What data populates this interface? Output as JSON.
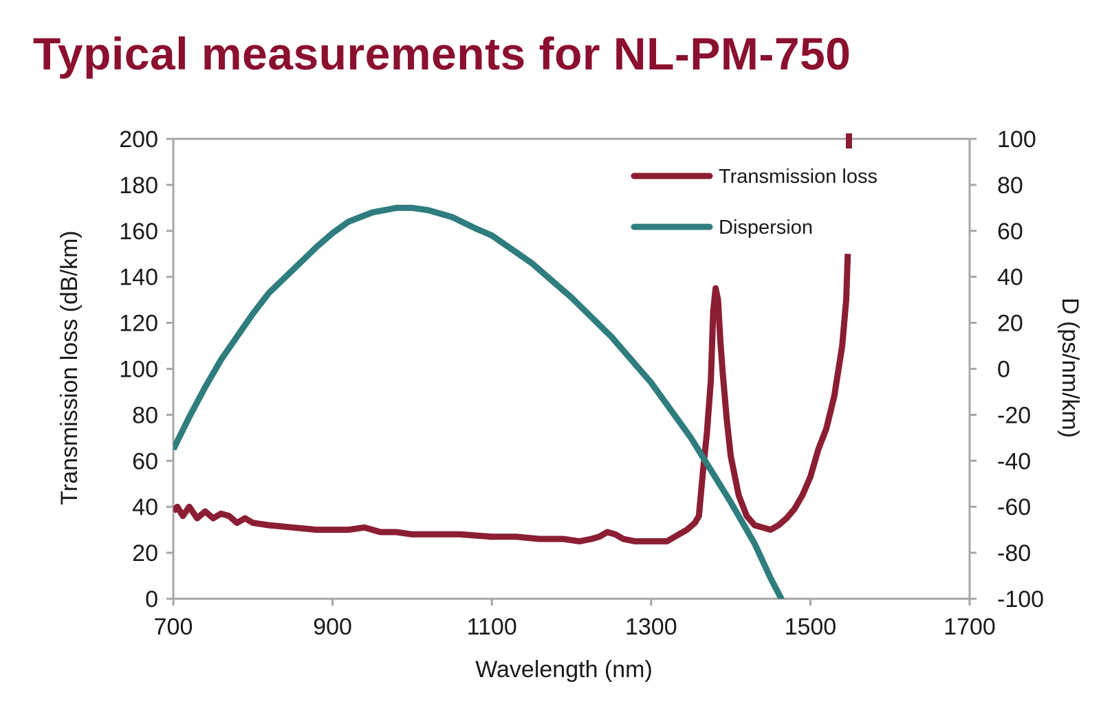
{
  "title": "Typical measurements for NL-PM-750",
  "chart_data": {
    "type": "line",
    "title": "Typical measurements for NL-PM-750",
    "xlabel": "Wavelength (nm)",
    "ylabel_left": "Transmission loss (dB/km)",
    "ylabel_right": "D (ps/nm/km)",
    "xlim": [
      700,
      1700
    ],
    "ylim_left": [
      0,
      200
    ],
    "ylim_right": [
      -100,
      100
    ],
    "x_ticks": [
      "700",
      "900",
      "1100",
      "1300",
      "1500",
      "1700"
    ],
    "y_left_ticks": [
      "0",
      "20",
      "40",
      "60",
      "80",
      "100",
      "120",
      "140",
      "160",
      "180",
      "200"
    ],
    "y_right_ticks": [
      "-100",
      "-80",
      "-60",
      "-40",
      "-20",
      "0",
      "20",
      "40",
      "60",
      "80",
      "100"
    ],
    "grid": false,
    "legend_position": "top-right",
    "series": [
      {
        "name": "Transmission loss",
        "axis": "left",
        "color": "#8b1e32",
        "x": [
          700,
          705,
          712,
          720,
          730,
          740,
          750,
          760,
          770,
          780,
          790,
          800,
          820,
          850,
          880,
          900,
          920,
          940,
          960,
          980,
          1000,
          1030,
          1060,
          1100,
          1130,
          1160,
          1190,
          1210,
          1225,
          1235,
          1245,
          1255,
          1265,
          1280,
          1300,
          1320,
          1335,
          1345,
          1355,
          1360,
          1365,
          1370,
          1375,
          1378,
          1381,
          1384,
          1387,
          1390,
          1395,
          1400,
          1410,
          1420,
          1430,
          1440,
          1450,
          1460,
          1470,
          1480,
          1490,
          1500,
          1510,
          1520,
          1530,
          1540,
          1545,
          1547
        ],
        "y": [
          38,
          40,
          36,
          40,
          35,
          38,
          35,
          37,
          36,
          33,
          35,
          33,
          32,
          31,
          30,
          30,
          30,
          31,
          29,
          29,
          28,
          28,
          28,
          27,
          27,
          26,
          26,
          25,
          26,
          27,
          29,
          28,
          26,
          25,
          25,
          25,
          28,
          30,
          33,
          36,
          55,
          72,
          95,
          125,
          135,
          130,
          112,
          98,
          78,
          62,
          45,
          36,
          32,
          31,
          30,
          32,
          35,
          39,
          45,
          53,
          65,
          74,
          88,
          110,
          130,
          150
        ]
      },
      {
        "name": "Dispersion",
        "axis": "right",
        "color": "#2f7d7e",
        "x": [
          700,
          720,
          740,
          760,
          780,
          800,
          820,
          850,
          880,
          900,
          920,
          950,
          980,
          1000,
          1020,
          1050,
          1080,
          1100,
          1150,
          1200,
          1250,
          1300,
          1350,
          1400,
          1430,
          1450,
          1465
        ],
        "y": [
          -35,
          -21,
          -8,
          4,
          14,
          24,
          33,
          43,
          53,
          59,
          64,
          68,
          70,
          70,
          69,
          66,
          61,
          58,
          46,
          31,
          14,
          -6,
          -30,
          -58,
          -76,
          -91,
          -101
        ]
      }
    ]
  }
}
